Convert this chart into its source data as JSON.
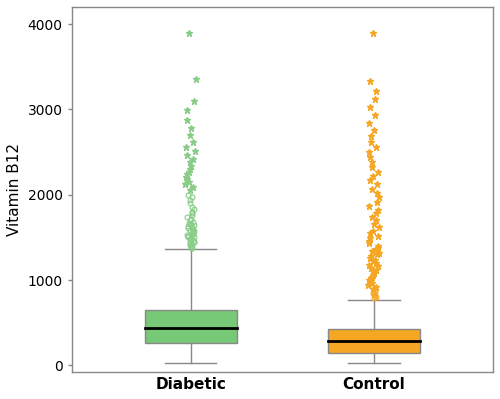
{
  "groups": [
    "Diabetic",
    "Control"
  ],
  "diabetic": {
    "whisker_low": 30,
    "q1": 260,
    "median": 440,
    "q3": 650,
    "whisker_high": 1360,
    "flier_circles_values": [
      1370,
      1380,
      1390,
      1400,
      1410,
      1420,
      1430,
      1440,
      1450,
      1460,
      1470,
      1480,
      1490,
      1500,
      1510,
      1520,
      1530,
      1540,
      1550,
      1560,
      1570,
      1580,
      1590,
      1600,
      1610,
      1620,
      1630,
      1640,
      1650,
      1660,
      1670,
      1680,
      1700,
      1720,
      1740,
      1760,
      1780,
      1800,
      1830,
      1860,
      1900,
      1940,
      1970,
      2000
    ],
    "flier_stars_values": [
      2050,
      2090,
      2120,
      2150,
      2180,
      2210,
      2240,
      2270,
      2300,
      2340,
      2380,
      2420,
      2460,
      2510,
      2560,
      2620,
      2700,
      2780,
      2880,
      2990,
      3100,
      3350,
      3900
    ],
    "box_color": "#77c877",
    "flier_color": "#88cc88"
  },
  "control": {
    "whisker_low": 30,
    "q1": 150,
    "median": 290,
    "q3": 430,
    "whisker_high": 770,
    "flier_circles_values": [
      790,
      800,
      815,
      830,
      845,
      860,
      875
    ],
    "flier_stars_values": [
      900,
      920,
      940,
      960,
      980,
      1000,
      1020,
      1040,
      1060,
      1080,
      1100,
      1120,
      1140,
      1160,
      1180,
      1200,
      1220,
      1240,
      1260,
      1280,
      1300,
      1320,
      1340,
      1360,
      1380,
      1400,
      1430,
      1460,
      1490,
      1520,
      1550,
      1580,
      1620,
      1660,
      1700,
      1740,
      1780,
      1820,
      1870,
      1920,
      1970,
      2020,
      2070,
      2120,
      2170,
      2220,
      2270,
      2320,
      2380,
      2440,
      2500,
      2560,
      2620,
      2690,
      2760,
      2840,
      2930,
      3030,
      3120,
      3220,
      3330,
      3900
    ],
    "box_color": "#f5a623",
    "flier_color": "#f5a623"
  },
  "ylabel": "Vitamin B12",
  "ylim": [
    -80,
    4200
  ],
  "yticks": [
    0,
    1000,
    2000,
    3000,
    4000
  ],
  "background_color": "#ffffff",
  "median_color": "#000000",
  "whisker_color": "#888888",
  "box_edge_color": "#888888",
  "frame_color": "#aaaaaa"
}
